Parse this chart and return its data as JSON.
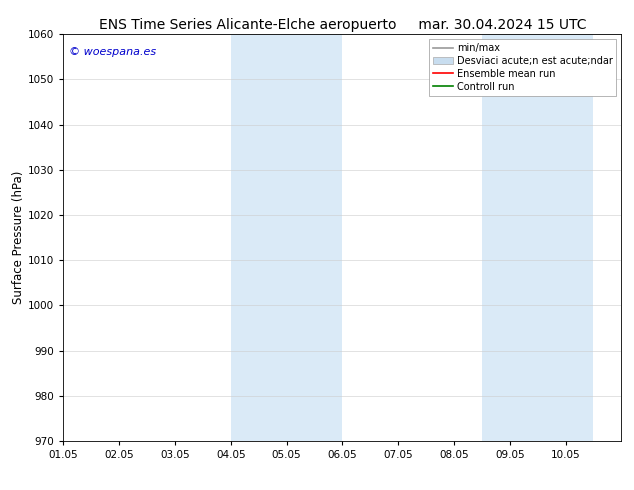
{
  "title_left": "ENS Time Series Alicante-Elche aeropuerto",
  "title_right": "mar. 30.04.2024 15 UTC",
  "ylabel": "Surface Pressure (hPa)",
  "ylim": [
    970,
    1060
  ],
  "yticks": [
    970,
    980,
    990,
    1000,
    1010,
    1020,
    1030,
    1040,
    1050,
    1060
  ],
  "xlim_start": 0.0,
  "xlim_end": 10.0,
  "xtick_positions": [
    0,
    1,
    2,
    3,
    4,
    5,
    6,
    7,
    8,
    9
  ],
  "xtick_labels": [
    "01.05",
    "02.05",
    "03.05",
    "04.05",
    "05.05",
    "06.05",
    "07.05",
    "08.05",
    "09.05",
    "10.05"
  ],
  "shaded_regions": [
    {
      "x_start": 3.0,
      "x_end": 4.0,
      "color": "#daeaf7"
    },
    {
      "x_start": 4.0,
      "x_end": 5.0,
      "color": "#daeaf7"
    },
    {
      "x_start": 7.5,
      "x_end": 8.5,
      "color": "#daeaf7"
    },
    {
      "x_start": 8.5,
      "x_end": 9.5,
      "color": "#daeaf7"
    }
  ],
  "watermark_text": "© woespana.es",
  "watermark_color": "#0000cc",
  "legend_entries": [
    {
      "label": "min/max",
      "color": "#999999",
      "linestyle": "-",
      "linewidth": 1.2,
      "type": "line"
    },
    {
      "label": "Desviaci acute;n est acute;ndar",
      "color": "#c8ddef",
      "linestyle": "-",
      "linewidth": 8,
      "type": "band"
    },
    {
      "label": "Ensemble mean run",
      "color": "#ff0000",
      "linestyle": "-",
      "linewidth": 1.2,
      "type": "line"
    },
    {
      "label": "Controll run",
      "color": "#008000",
      "linestyle": "-",
      "linewidth": 1.2,
      "type": "line"
    }
  ],
  "background_color": "#ffffff",
  "grid_color": "#cccccc",
  "spine_color": "#000000",
  "title_fontsize": 10,
  "tick_fontsize": 7.5,
  "ylabel_fontsize": 8.5,
  "legend_fontsize": 7,
  "watermark_fontsize": 8
}
